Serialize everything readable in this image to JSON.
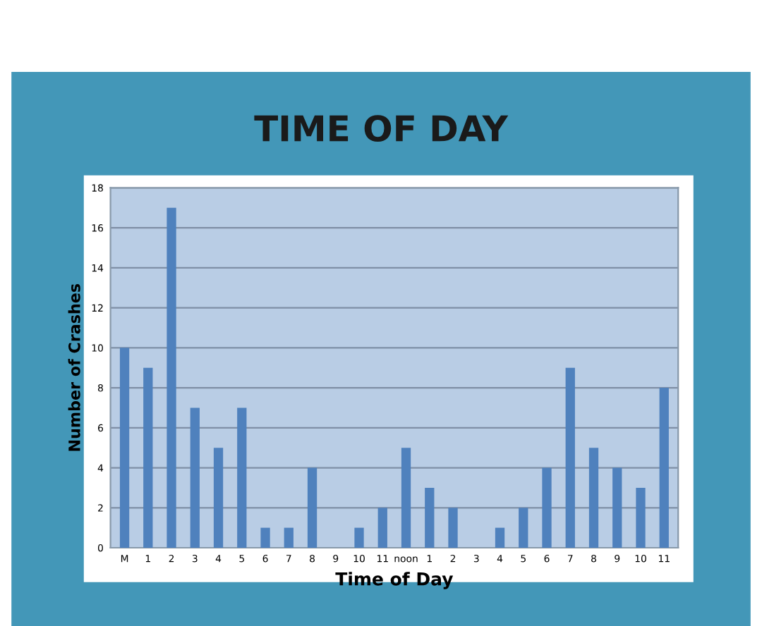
{
  "chart_data": {
    "type": "bar",
    "title": "TIME OF DAY",
    "xlabel": "Time of Day",
    "ylabel": "Number of Crashes",
    "categories": [
      "M",
      "1",
      "2",
      "3",
      "4",
      "5",
      "6",
      "7",
      "8",
      "9",
      "10",
      "11",
      "noon",
      "1",
      "2",
      "3",
      "4",
      "5",
      "6",
      "7",
      "8",
      "9",
      "10",
      "11"
    ],
    "values": [
      10,
      9,
      17,
      7,
      5,
      7,
      1,
      1,
      4,
      0,
      1,
      2,
      5,
      3,
      2,
      0,
      1,
      2,
      4,
      9,
      5,
      4,
      3,
      8
    ],
    "color": "#4f81bd",
    "ylim": [
      0,
      18
    ],
    "yticks": [
      0,
      2,
      4,
      6,
      8,
      10,
      12,
      14,
      16,
      18
    ],
    "grid": "y"
  }
}
